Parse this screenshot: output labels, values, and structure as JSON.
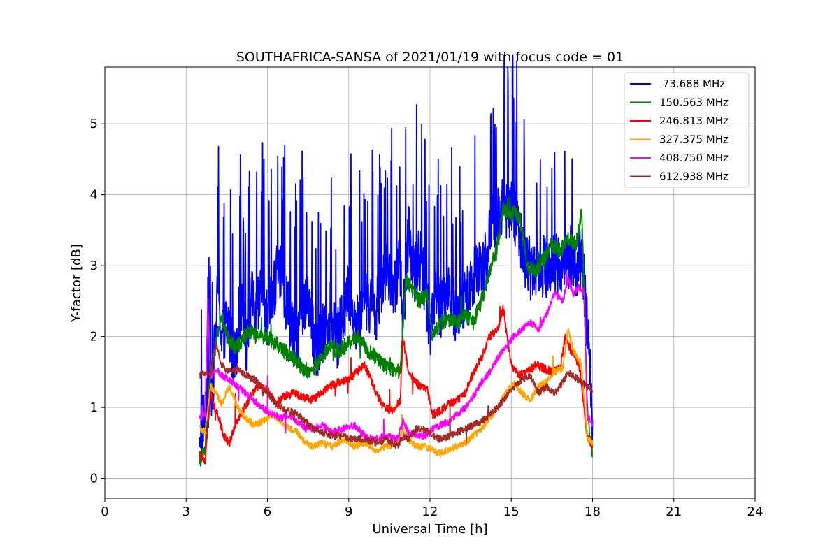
{
  "chart_data": {
    "type": "line",
    "title": "SOUTHAFRICA-SANSA of 2021/01/19 with focus code = 01",
    "xlabel": "Universal Time [h]",
    "ylabel": "Y-factor [dB]",
    "xlim": [
      0,
      24
    ],
    "ylim": [
      -0.28,
      5.8
    ],
    "xticks": [
      0,
      3,
      6,
      9,
      12,
      15,
      18,
      21,
      24
    ],
    "xtick_labels": [
      "0",
      "3",
      "6",
      "9",
      "12",
      "15",
      "18",
      "21",
      "24"
    ],
    "yticks": [
      0,
      1,
      2,
      3,
      4,
      5
    ],
    "ytick_labels": [
      "0",
      "1",
      "2",
      "3",
      "4",
      "5"
    ],
    "grid": true,
    "legend_position": "top-right",
    "series": [
      {
        "name": " 73.688 MHz",
        "color": "#0000ff",
        "x": [
          3.5,
          3.7,
          3.9,
          4.0,
          4.2,
          4.3,
          4.5,
          4.8,
          5.0,
          5.2,
          5.4,
          5.6,
          5.8,
          6.0,
          6.2,
          6.4,
          6.6,
          6.8,
          7.0,
          7.2,
          7.5,
          7.8,
          8.0,
          8.3,
          8.6,
          9.0,
          9.3,
          9.6,
          10.0,
          10.3,
          10.6,
          10.9,
          11.0,
          11.2,
          11.4,
          11.6,
          11.8,
          12.0,
          12.2,
          12.4,
          12.6,
          12.8,
          13.0,
          13.3,
          13.6,
          14.0,
          14.3,
          14.5,
          14.7,
          14.9,
          15.1,
          15.3,
          15.5,
          15.7,
          16.0,
          16.3,
          16.6,
          16.9,
          17.0,
          17.2,
          17.4,
          17.6,
          17.8,
          18.0
        ],
        "y": [
          0.75,
          0.9,
          1.2,
          1.5,
          2.9,
          1.9,
          2.3,
          1.7,
          2.5,
          1.9,
          2.6,
          2.3,
          2.8,
          2.2,
          2.6,
          3.1,
          2.7,
          2.4,
          1.9,
          2.3,
          2.6,
          1.8,
          2.0,
          2.4,
          2.0,
          2.7,
          2.2,
          2.6,
          2.4,
          3.0,
          2.7,
          3.0,
          2.2,
          3.5,
          2.9,
          3.2,
          2.8,
          2.2,
          2.7,
          2.4,
          2.7,
          2.5,
          2.3,
          2.6,
          2.9,
          3.1,
          3.6,
          3.7,
          4.0,
          3.8,
          3.8,
          3.5,
          3.2,
          3.0,
          3.1,
          3.0,
          3.1,
          3.0,
          3.1,
          3.2,
          3.0,
          3.2,
          2.2,
          0.9
        ]
      },
      {
        "name": "150.563 MHz",
        "color": "#008000",
        "x": [
          3.5,
          3.7,
          3.9,
          4.1,
          4.3,
          4.5,
          4.8,
          5.0,
          5.3,
          5.6,
          6.0,
          6.3,
          6.6,
          7.0,
          7.3,
          7.6,
          8.0,
          8.3,
          8.6,
          9.0,
          9.3,
          9.6,
          10.0,
          10.3,
          10.6,
          10.9,
          11.1,
          11.3,
          11.6,
          11.9,
          12.1,
          12.4,
          12.7,
          13.0,
          13.3,
          13.6,
          13.9,
          14.2,
          14.5,
          14.7,
          15.0,
          15.3,
          15.6,
          15.9,
          16.2,
          16.5,
          16.8,
          17.1,
          17.4,
          17.6,
          17.8,
          18.0
        ],
        "y": [
          0.25,
          0.4,
          1.5,
          1.9,
          2.3,
          2.0,
          1.85,
          1.9,
          2.1,
          2.0,
          2.0,
          1.9,
          1.8,
          1.7,
          1.55,
          1.5,
          1.7,
          1.85,
          1.8,
          1.9,
          2.0,
          1.85,
          1.7,
          1.6,
          1.55,
          1.5,
          2.8,
          2.7,
          2.5,
          2.6,
          2.0,
          2.2,
          2.25,
          2.2,
          2.3,
          2.2,
          2.5,
          2.9,
          3.3,
          3.8,
          3.75,
          3.7,
          3.0,
          2.9,
          3.1,
          3.3,
          3.2,
          3.4,
          3.3,
          3.8,
          1.0,
          0.3
        ]
      },
      {
        "name": "246.813 MHz",
        "color": "#ff0000",
        "x": [
          3.5,
          3.7,
          3.9,
          4.0,
          4.2,
          4.4,
          4.6,
          4.8,
          5.0,
          5.3,
          5.6,
          6.0,
          6.3,
          6.6,
          7.0,
          7.3,
          7.6,
          8.0,
          8.3,
          8.6,
          9.0,
          9.3,
          9.6,
          10.0,
          10.3,
          10.6,
          10.9,
          11.0,
          11.2,
          11.4,
          11.6,
          11.9,
          12.1,
          12.4,
          12.7,
          13.0,
          13.3,
          13.6,
          13.9,
          14.2,
          14.5,
          14.7,
          15.0,
          15.3,
          15.6,
          15.9,
          16.2,
          16.5,
          16.8,
          17.0,
          17.2,
          17.5,
          17.8,
          18.0
        ],
        "y": [
          0.35,
          0.2,
          1.25,
          1.05,
          0.85,
          0.6,
          0.5,
          0.75,
          0.9,
          1.1,
          1.3,
          1.25,
          1.05,
          1.15,
          1.2,
          1.15,
          1.1,
          1.2,
          1.3,
          1.35,
          1.4,
          1.5,
          1.6,
          1.2,
          1.0,
          0.95,
          1.1,
          2.0,
          1.5,
          1.4,
          1.3,
          1.25,
          0.9,
          0.95,
          1.05,
          1.1,
          1.2,
          1.5,
          1.7,
          2.0,
          2.1,
          2.4,
          1.6,
          1.45,
          1.5,
          1.6,
          1.55,
          1.5,
          1.55,
          2.0,
          1.8,
          1.6,
          0.6,
          0.45
        ]
      },
      {
        "name": "327.375 MHz",
        "color": "#ffa500",
        "x": [
          3.5,
          3.7,
          3.9,
          4.1,
          4.3,
          4.6,
          4.9,
          5.2,
          5.5,
          5.8,
          6.2,
          6.5,
          6.8,
          7.1,
          7.4,
          7.7,
          8.0,
          8.4,
          8.8,
          9.2,
          9.6,
          10.0,
          10.4,
          10.8,
          11.0,
          11.2,
          11.5,
          11.8,
          12.1,
          12.4,
          12.7,
          13.0,
          13.3,
          13.6,
          13.9,
          14.2,
          14.5,
          14.8,
          15.1,
          15.4,
          15.7,
          16.0,
          16.3,
          16.6,
          16.9,
          17.1,
          17.3,
          17.6,
          17.8,
          18.0
        ],
        "y": [
          0.7,
          0.65,
          1.3,
          1.2,
          1.05,
          1.3,
          1.0,
          0.85,
          0.75,
          0.8,
          0.9,
          0.8,
          0.7,
          0.65,
          0.5,
          0.45,
          0.5,
          0.45,
          0.55,
          0.45,
          0.5,
          0.4,
          0.45,
          0.5,
          0.7,
          0.55,
          0.45,
          0.45,
          0.4,
          0.35,
          0.4,
          0.45,
          0.5,
          0.6,
          0.7,
          0.85,
          1.0,
          1.2,
          1.35,
          1.2,
          1.1,
          1.3,
          1.35,
          1.5,
          1.55,
          2.1,
          1.8,
          1.6,
          0.55,
          0.5
        ]
      },
      {
        "name": "408.750 MHz",
        "color": "#ff00ff",
        "x": [
          3.5,
          3.7,
          3.8,
          3.9,
          4.1,
          4.3,
          4.6,
          4.9,
          5.2,
          5.5,
          5.8,
          6.2,
          6.5,
          6.8,
          7.1,
          7.4,
          7.7,
          8.0,
          8.4,
          8.8,
          9.2,
          9.6,
          10.0,
          10.4,
          10.8,
          11.0,
          11.2,
          11.5,
          11.8,
          12.1,
          12.4,
          12.7,
          13.0,
          13.3,
          13.6,
          13.9,
          14.2,
          14.5,
          14.8,
          15.1,
          15.4,
          15.7,
          16.0,
          16.3,
          16.6,
          16.9,
          17.1,
          17.3,
          17.5,
          17.7,
          17.8,
          18.0
        ],
        "y": [
          0.85,
          0.9,
          2.5,
          1.4,
          1.55,
          1.45,
          1.4,
          1.3,
          1.2,
          1.1,
          1.0,
          0.9,
          0.85,
          0.9,
          0.8,
          0.7,
          0.7,
          0.75,
          0.65,
          0.7,
          0.75,
          0.6,
          0.55,
          0.6,
          0.55,
          0.8,
          0.65,
          0.6,
          0.6,
          0.7,
          0.75,
          0.8,
          0.9,
          1.0,
          1.15,
          1.35,
          1.5,
          1.7,
          1.85,
          2.0,
          2.1,
          2.2,
          2.1,
          2.3,
          2.6,
          2.5,
          2.8,
          2.6,
          2.7,
          2.6,
          0.9,
          0.75
        ]
      },
      {
        "name": "612.938 MHz",
        "color": "#a52a2a",
        "x": [
          3.5,
          3.7,
          3.9,
          4.1,
          4.3,
          4.6,
          4.9,
          5.2,
          5.5,
          5.8,
          6.2,
          6.5,
          6.8,
          7.1,
          7.4,
          7.7,
          8.0,
          8.4,
          8.8,
          9.2,
          9.6,
          10.0,
          10.4,
          10.8,
          11.0,
          11.2,
          11.5,
          11.8,
          12.1,
          12.4,
          12.7,
          13.0,
          13.3,
          13.6,
          13.9,
          14.2,
          14.5,
          14.8,
          15.1,
          15.4,
          15.7,
          16.0,
          16.3,
          16.6,
          16.9,
          17.1,
          17.3,
          17.6,
          17.8,
          18.0
        ],
        "y": [
          1.45,
          1.5,
          1.45,
          1.9,
          1.6,
          1.5,
          1.55,
          1.45,
          1.4,
          1.3,
          1.1,
          1.0,
          0.95,
          0.9,
          0.8,
          0.7,
          0.65,
          0.6,
          0.6,
          0.55,
          0.55,
          0.5,
          0.55,
          0.45,
          0.6,
          0.55,
          0.7,
          0.7,
          0.6,
          0.55,
          0.6,
          0.65,
          0.7,
          0.75,
          0.8,
          0.9,
          1.0,
          1.15,
          1.3,
          1.4,
          1.45,
          1.2,
          1.3,
          1.2,
          1.35,
          1.5,
          1.45,
          1.35,
          1.3,
          1.25
        ]
      }
    ]
  }
}
